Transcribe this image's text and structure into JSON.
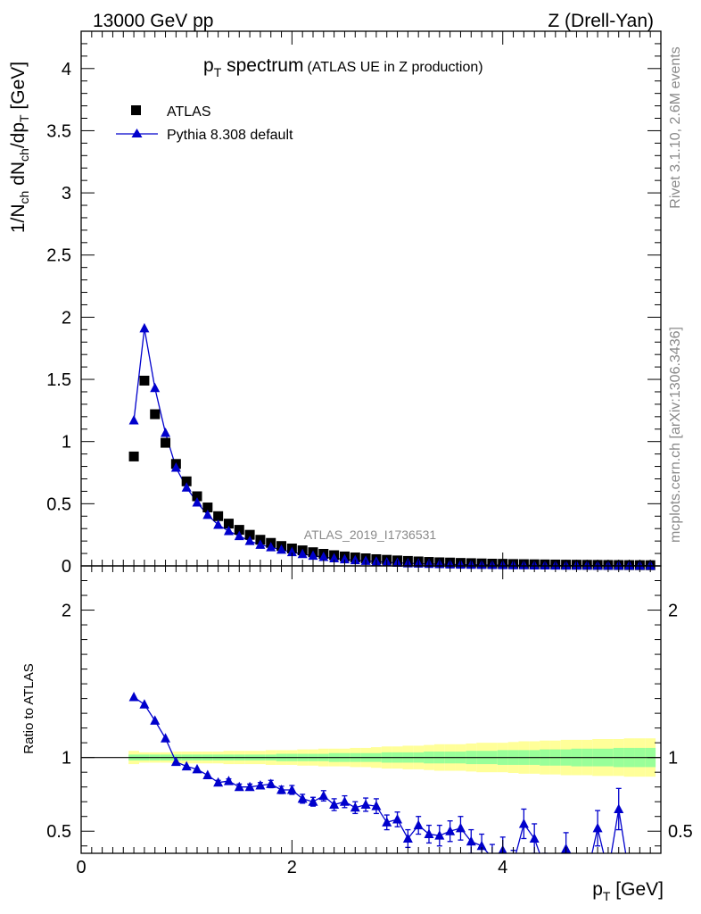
{
  "header": {
    "left": "13000 GeV pp",
    "right": "Z (Drell-Yan)"
  },
  "side_labels": {
    "rivet": "Rivet 3.1.10,  2.6M events",
    "mcplots": "mcplots.cern.ch [arXiv:1306.3436]"
  },
  "chart_data": {
    "type": "scatter",
    "title": "p_T spectrum",
    "title_parts": {
      "main": "p",
      "sub": "T",
      "rest": " spectrum",
      "note": "(ATLAS UE in Z production)"
    },
    "analysis_tag": "ATLAS_2019_I1736531",
    "xlabel_parts": {
      "main": "p",
      "sub": "T",
      "rest": " [GeV]"
    },
    "ylabel_parts": {
      "t1": "1/N",
      "s1": "ch",
      "t2": " dN",
      "s2": "ch",
      "t3": "/dp",
      "s3": "T",
      "t4": " [GeV]"
    },
    "ratio_ylabel": "Ratio to ATLAS",
    "xlim": [
      0,
      5.5
    ],
    "ylim": [
      0,
      4.3
    ],
    "ratio_ylim": [
      0.35,
      2.3
    ],
    "x_ticks": [
      "0",
      "2",
      "4"
    ],
    "y_ticks": [
      "0",
      "0.5",
      "1",
      "1.5",
      "2",
      "2.5",
      "3",
      "3.5",
      "4"
    ],
    "ratio_y_ticks": [
      "0.5",
      "1",
      "2"
    ],
    "legend": {
      "position": "top-left",
      "entries": [
        "ATLAS",
        "Pythia 8.308 default"
      ]
    },
    "x": [
      0.5,
      0.6,
      0.7,
      0.8,
      0.9,
      1.0,
      1.1,
      1.2,
      1.3,
      1.4,
      1.5,
      1.6,
      1.7,
      1.8,
      1.9,
      2.0,
      2.1,
      2.2,
      2.3,
      2.4,
      2.5,
      2.6,
      2.7,
      2.8,
      2.9,
      3.0,
      3.1,
      3.2,
      3.3,
      3.4,
      3.5,
      3.6,
      3.7,
      3.8,
      3.9,
      4.0,
      4.1,
      4.2,
      4.3,
      4.4,
      4.5,
      4.6,
      4.7,
      4.8,
      4.9,
      5.0,
      5.1,
      5.2,
      5.3,
      5.4
    ],
    "series": [
      {
        "name": "ATLAS",
        "values": [
          0.88,
          1.49,
          1.22,
          0.99,
          0.82,
          0.68,
          0.56,
          0.47,
          0.4,
          0.34,
          0.29,
          0.25,
          0.21,
          0.185,
          0.16,
          0.14,
          0.125,
          0.11,
          0.097,
          0.086,
          0.076,
          0.068,
          0.061,
          0.054,
          0.049,
          0.044,
          0.04,
          0.036,
          0.032,
          0.029,
          0.027,
          0.024,
          0.022,
          0.02,
          0.018,
          0.017,
          0.015,
          0.014,
          0.013,
          0.012,
          0.011,
          0.01,
          0.0095,
          0.0088,
          0.0082,
          0.0076,
          0.0071,
          0.0066,
          0.0062,
          0.0058
        ]
      },
      {
        "name": "Pythia 8.308 default",
        "values": [
          1.17,
          1.91,
          1.43,
          1.07,
          0.79,
          0.63,
          0.51,
          0.41,
          0.33,
          0.28,
          0.24,
          0.2,
          0.17,
          0.15,
          0.13,
          0.11,
          0.095,
          0.082,
          0.072,
          0.061,
          0.053,
          0.046,
          0.04,
          0.035,
          0.029,
          0.025,
          0.021,
          0.019,
          0.016,
          0.014,
          0.012,
          0.01,
          0.009,
          0.008,
          0.007,
          0.006,
          0.005,
          0.005,
          0.004,
          0.004,
          0.003,
          0.003,
          0.003,
          0.003,
          0.002,
          0.002,
          0.002,
          0.002,
          0.002,
          0.002
        ],
        "ratio": [
          1.41,
          1.36,
          1.25,
          1.13,
          0.97,
          0.94,
          0.92,
          0.88,
          0.83,
          0.84,
          0.8,
          0.8,
          0.81,
          0.82,
          0.78,
          0.78,
          0.72,
          0.7,
          0.74,
          0.68,
          0.7,
          0.66,
          0.68,
          0.67,
          0.56,
          0.58,
          0.45,
          0.54,
          0.48,
          0.47,
          0.5,
          0.52,
          0.43,
          0.4,
          0.32,
          0.37,
          0.28,
          0.55,
          0.45,
          0.25,
          0.23,
          0.38,
          0.2,
          0.2,
          0.52,
          0.22,
          0.65,
          0.2,
          0.2,
          0.2
        ],
        "ratio_err": [
          0.01,
          0.01,
          0.01,
          0.01,
          0.01,
          0.01,
          0.01,
          0.01,
          0.015,
          0.015,
          0.02,
          0.02,
          0.02,
          0.025,
          0.025,
          0.03,
          0.03,
          0.03,
          0.035,
          0.04,
          0.04,
          0.04,
          0.045,
          0.05,
          0.05,
          0.05,
          0.06,
          0.06,
          0.06,
          0.07,
          0.07,
          0.08,
          0.08,
          0.08,
          0.09,
          0.09,
          0.09,
          0.1,
          0.1,
          0.1,
          0.11,
          0.11,
          0.11,
          0.12,
          0.12,
          0.12,
          0.14,
          0.14,
          0.14,
          0.14
        ]
      }
    ],
    "ratio_band": {
      "stat_halfwidth": [
        0.02,
        0.02,
        0.02,
        0.02,
        0.02,
        0.02,
        0.02,
        0.02,
        0.02,
        0.02,
        0.02,
        0.02,
        0.02,
        0.02,
        0.025,
        0.025,
        0.025,
        0.025,
        0.025,
        0.03,
        0.03,
        0.03,
        0.03,
        0.03,
        0.035,
        0.035,
        0.035,
        0.035,
        0.04,
        0.04,
        0.04,
        0.04,
        0.045,
        0.045,
        0.045,
        0.05,
        0.05,
        0.05,
        0.05,
        0.055,
        0.055,
        0.055,
        0.06,
        0.06,
        0.06,
        0.06,
        0.065,
        0.065,
        0.065,
        0.065
      ],
      "total_halfwidth": [
        0.045,
        0.035,
        0.035,
        0.035,
        0.04,
        0.04,
        0.04,
        0.04,
        0.04,
        0.045,
        0.045,
        0.045,
        0.045,
        0.05,
        0.05,
        0.05,
        0.055,
        0.055,
        0.06,
        0.06,
        0.06,
        0.065,
        0.065,
        0.07,
        0.075,
        0.075,
        0.08,
        0.08,
        0.085,
        0.09,
        0.09,
        0.09,
        0.095,
        0.1,
        0.1,
        0.1,
        0.105,
        0.11,
        0.11,
        0.115,
        0.115,
        0.12,
        0.12,
        0.12,
        0.125,
        0.125,
        0.125,
        0.13,
        0.13,
        0.13
      ]
    }
  }
}
